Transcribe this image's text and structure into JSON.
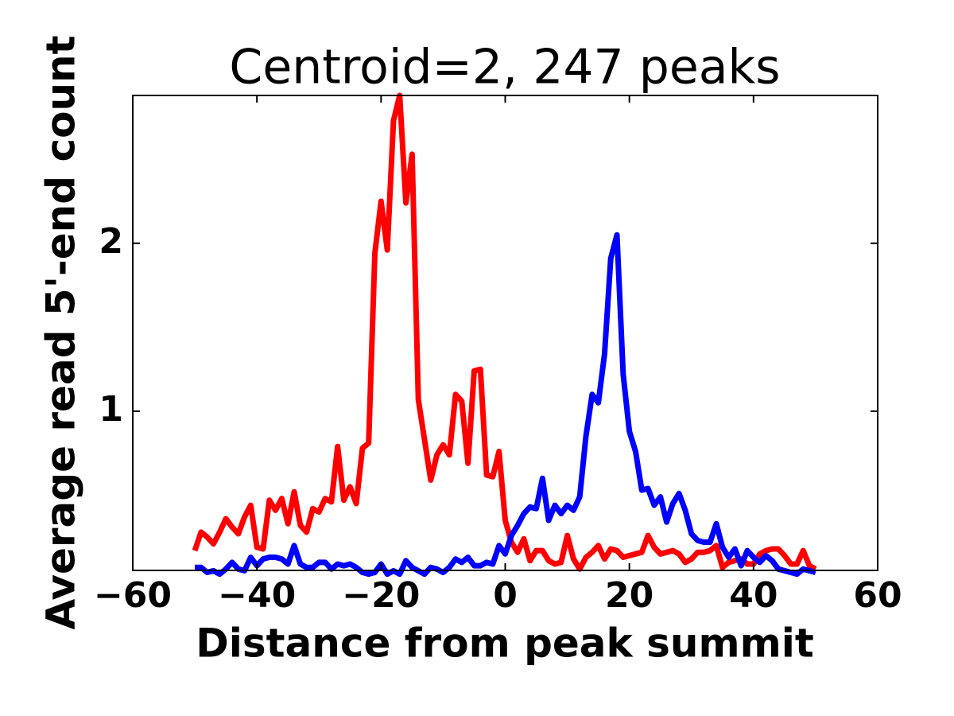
{
  "chart_data": {
    "type": "line",
    "title": "Centroid=2, 247 peaks",
    "xlabel": "Distance from peak summit",
    "ylabel": "Average read 5'-end count",
    "x": [
      -50,
      -49,
      -48,
      -47,
      -46,
      -45,
      -44,
      -43,
      -42,
      -41,
      -40,
      -39,
      -38,
      -37,
      -36,
      -35,
      -34,
      -33,
      -32,
      -31,
      -30,
      -29,
      -28,
      -27,
      -26,
      -25,
      -24,
      -23,
      -22,
      -21,
      -20,
      -19,
      -18,
      -17,
      -16,
      -15,
      -14,
      -13,
      -12,
      -11,
      -10,
      -9,
      -8,
      -7,
      -6,
      -5,
      -4,
      -3,
      -2,
      -1,
      0,
      1,
      2,
      3,
      4,
      5,
      6,
      7,
      8,
      9,
      10,
      11,
      12,
      13,
      14,
      15,
      16,
      17,
      18,
      19,
      20,
      21,
      22,
      23,
      24,
      25,
      26,
      27,
      28,
      29,
      30,
      31,
      32,
      33,
      34,
      35,
      36,
      37,
      38,
      39,
      40,
      41,
      42,
      43,
      44,
      45,
      46,
      47,
      48,
      49,
      50
    ],
    "series": [
      {
        "color": "#ff0000",
        "values": [
          0.17,
          0.28,
          0.25,
          0.21,
          0.28,
          0.36,
          0.31,
          0.27,
          0.37,
          0.44,
          0.19,
          0.18,
          0.47,
          0.41,
          0.48,
          0.33,
          0.52,
          0.32,
          0.28,
          0.42,
          0.4,
          0.48,
          0.46,
          0.79,
          0.47,
          0.55,
          0.45,
          0.78,
          0.81,
          1.94,
          2.25,
          1.96,
          2.73,
          2.88,
          2.24,
          2.53,
          1.07,
          0.83,
          0.59,
          0.74,
          0.8,
          0.74,
          1.1,
          1.06,
          0.69,
          1.24,
          1.25,
          0.62,
          0.61,
          0.76,
          0.35,
          0.22,
          0.16,
          0.24,
          0.11,
          0.17,
          0.17,
          0.11,
          0.09,
          0.1,
          0.26,
          0.12,
          0.06,
          0.13,
          0.16,
          0.2,
          0.12,
          0.18,
          0.17,
          0.13,
          0.14,
          0.15,
          0.16,
          0.26,
          0.19,
          0.15,
          0.16,
          0.17,
          0.15,
          0.1,
          0.12,
          0.16,
          0.16,
          0.17,
          0.2,
          0.07,
          0.1,
          0.11,
          0.12,
          0.09,
          0.09,
          0.15,
          0.17,
          0.18,
          0.18,
          0.14,
          0.09,
          0.09,
          0.17,
          0.08,
          0.06
        ]
      },
      {
        "color": "#0000ff",
        "values": [
          0.07,
          0.07,
          0.04,
          0.05,
          0.03,
          0.06,
          0.1,
          0.06,
          0.05,
          0.13,
          0.08,
          0.12,
          0.13,
          0.13,
          0.12,
          0.09,
          0.2,
          0.09,
          0.07,
          0.07,
          0.1,
          0.1,
          0.06,
          0.09,
          0.08,
          0.09,
          0.07,
          0.04,
          0.03,
          0.04,
          0.09,
          0.03,
          0.05,
          0.03,
          0.11,
          0.07,
          0.05,
          0.03,
          0.07,
          0.06,
          0.04,
          0.07,
          0.12,
          0.1,
          0.13,
          0.08,
          0.08,
          0.1,
          0.09,
          0.2,
          0.15,
          0.26,
          0.32,
          0.39,
          0.43,
          0.42,
          0.6,
          0.35,
          0.44,
          0.39,
          0.44,
          0.41,
          0.49,
          0.85,
          1.1,
          1.05,
          1.34,
          1.91,
          2.05,
          1.22,
          0.88,
          0.76,
          0.53,
          0.54,
          0.44,
          0.49,
          0.34,
          0.45,
          0.51,
          0.41,
          0.27,
          0.23,
          0.22,
          0.22,
          0.33,
          0.19,
          0.13,
          0.18,
          0.08,
          0.17,
          0.13,
          0.1,
          0.14,
          0.11,
          0.06,
          0.05,
          0.04,
          0.03,
          0.06,
          0.05,
          0.04
        ]
      }
    ],
    "xlim": [
      -60,
      60
    ],
    "xticks": [
      {
        "value": -60,
        "label": "−60"
      },
      {
        "value": -40,
        "label": "−40"
      },
      {
        "value": -20,
        "label": "−20"
      },
      0,
      20,
      40,
      60
    ],
    "ylim": [
      0.052,
      2.88
    ],
    "yticks": [
      1,
      2
    ],
    "grid": false
  }
}
